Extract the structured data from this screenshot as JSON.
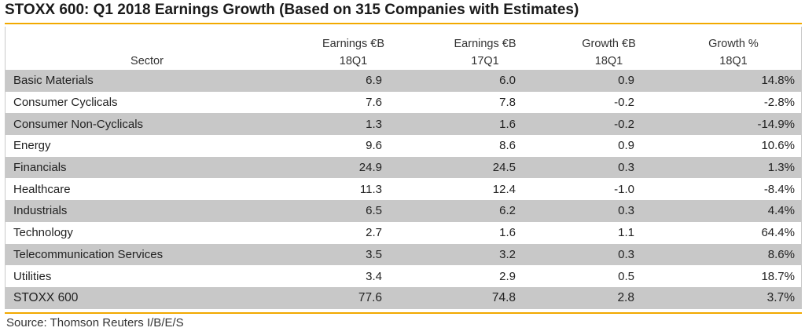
{
  "title": "STOXX 600: Q1 2018 Earnings Growth (Based on 315 Companies with Estimates)",
  "headers": {
    "sector": "Sector",
    "col1": {
      "line1": "Earnings €B",
      "line2": "18Q1"
    },
    "col2": {
      "line1": "Earnings €B",
      "line2": "17Q1"
    },
    "col3": {
      "line1": "Growth €B",
      "line2": "18Q1"
    },
    "col4": {
      "line1": "Growth %",
      "line2": "18Q1"
    }
  },
  "rows": [
    {
      "sector": "Basic Materials",
      "e18": "6.9",
      "e17": "6.0",
      "g": "0.9",
      "gp": "14.8%"
    },
    {
      "sector": "Consumer Cyclicals",
      "e18": "7.6",
      "e17": "7.8",
      "g": "-0.2",
      "gp": "-2.8%"
    },
    {
      "sector": "Consumer Non-Cyclicals",
      "e18": "1.3",
      "e17": "1.6",
      "g": "-0.2",
      "gp": "-14.9%"
    },
    {
      "sector": "Energy",
      "e18": "9.6",
      "e17": "8.6",
      "g": "0.9",
      "gp": "10.6%"
    },
    {
      "sector": "Financials",
      "e18": "24.9",
      "e17": "24.5",
      "g": "0.3",
      "gp": "1.3%"
    },
    {
      "sector": "Healthcare",
      "e18": "11.3",
      "e17": "12.4",
      "g": "-1.0",
      "gp": "-8.4%"
    },
    {
      "sector": "Industrials",
      "e18": "6.5",
      "e17": "6.2",
      "g": "0.3",
      "gp": "4.4%"
    },
    {
      "sector": "Technology",
      "e18": "2.7",
      "e17": "1.6",
      "g": "1.1",
      "gp": "64.4%"
    },
    {
      "sector": "Telecommunication Services",
      "e18": "3.5",
      "e17": "3.2",
      "g": "0.3",
      "gp": "8.6%"
    },
    {
      "sector": "Utilities",
      "e18": "3.4",
      "e17": "2.9",
      "g": "0.5",
      "gp": "18.7%"
    }
  ],
  "total": {
    "sector": "STOXX 600",
    "e18": "77.6",
    "e17": "74.8",
    "g": "2.8",
    "gp": "3.7%"
  },
  "source": "Source: Thomson Reuters I/B/E/S",
  "colors": {
    "accent_rule": "#f2a900",
    "shaded_row": "#c8c8c8"
  }
}
